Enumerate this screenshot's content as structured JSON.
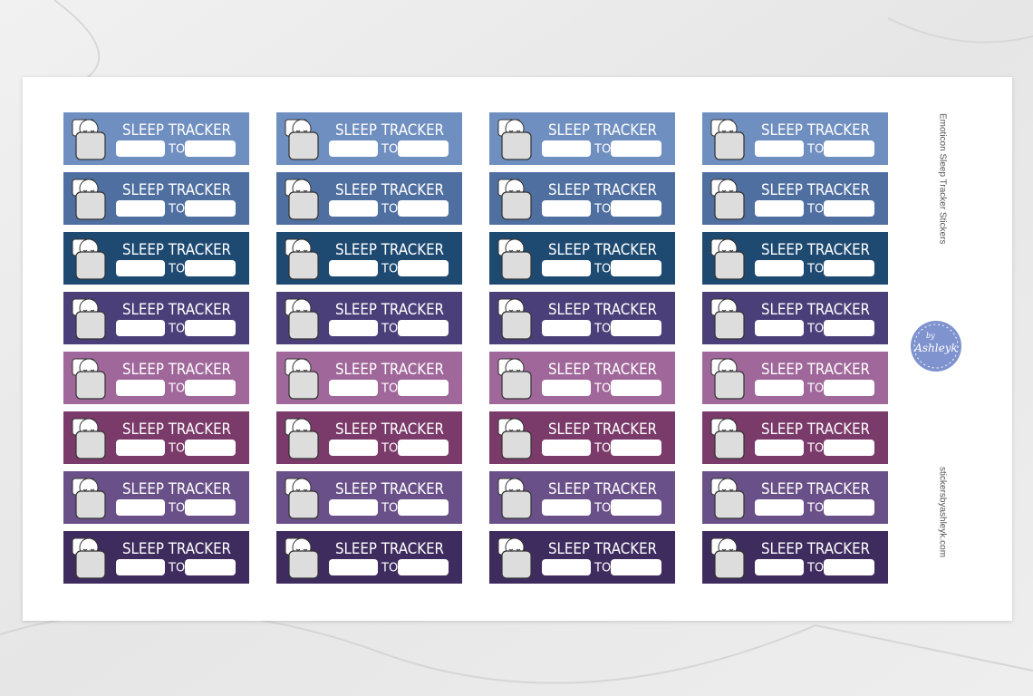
{
  "sheet": {
    "title": "Emoticon Sleep Tracker Stickers",
    "website": "stickersbyashleyk.com",
    "logo": {
      "by": "by",
      "name": "Ashleyk"
    }
  },
  "rows": [
    {
      "color": "#6f8fc0",
      "stickers": [
        {
          "title": "SLEEP TRACKER",
          "separator": "TO"
        },
        {
          "title": "SLEEP TRACKER",
          "separator": "TO"
        },
        {
          "title": "SLEEP TRACKER",
          "separator": "TO"
        },
        {
          "title": "SLEEP TRACKER",
          "separator": "TO"
        }
      ]
    },
    {
      "color": "#4f6fa0",
      "stickers": [
        {
          "title": "SLEEP TRACKER",
          "separator": "TO"
        },
        {
          "title": "SLEEP TRACKER",
          "separator": "TO"
        },
        {
          "title": "SLEEP TRACKER",
          "separator": "TO"
        },
        {
          "title": "SLEEP TRACKER",
          "separator": "TO"
        }
      ]
    },
    {
      "color": "#1e4a72",
      "stickers": [
        {
          "title": "SLEEP TRACKER",
          "separator": "TO"
        },
        {
          "title": "SLEEP TRACKER",
          "separator": "TO"
        },
        {
          "title": "SLEEP TRACKER",
          "separator": "TO"
        },
        {
          "title": "SLEEP TRACKER",
          "separator": "TO"
        }
      ]
    },
    {
      "color": "#4a3f78",
      "stickers": [
        {
          "title": "SLEEP TRACKER",
          "separator": "TO"
        },
        {
          "title": "SLEEP TRACKER",
          "separator": "TO"
        },
        {
          "title": "SLEEP TRACKER",
          "separator": "TO"
        },
        {
          "title": "SLEEP TRACKER",
          "separator": "TO"
        }
      ]
    },
    {
      "color": "#a0679a",
      "stickers": [
        {
          "title": "SLEEP TRACKER",
          "separator": "TO"
        },
        {
          "title": "SLEEP TRACKER",
          "separator": "TO"
        },
        {
          "title": "SLEEP TRACKER",
          "separator": "TO"
        },
        {
          "title": "SLEEP TRACKER",
          "separator": "TO"
        }
      ]
    },
    {
      "color": "#7a3a6a",
      "stickers": [
        {
          "title": "SLEEP TRACKER",
          "separator": "TO"
        },
        {
          "title": "SLEEP TRACKER",
          "separator": "TO"
        },
        {
          "title": "SLEEP TRACKER",
          "separator": "TO"
        },
        {
          "title": "SLEEP TRACKER",
          "separator": "TO"
        }
      ]
    },
    {
      "color": "#6a5088",
      "stickers": [
        {
          "title": "SLEEP TRACKER",
          "separator": "TO"
        },
        {
          "title": "SLEEP TRACKER",
          "separator": "TO"
        },
        {
          "title": "SLEEP TRACKER",
          "separator": "TO"
        },
        {
          "title": "SLEEP TRACKER",
          "separator": "TO"
        }
      ]
    },
    {
      "color": "#3f2c5f",
      "stickers": [
        {
          "title": "SLEEP TRACKER",
          "separator": "TO"
        },
        {
          "title": "SLEEP TRACKER",
          "separator": "TO"
        },
        {
          "title": "SLEEP TRACKER",
          "separator": "TO"
        },
        {
          "title": "SLEEP TRACKER",
          "separator": "TO"
        }
      ]
    }
  ]
}
